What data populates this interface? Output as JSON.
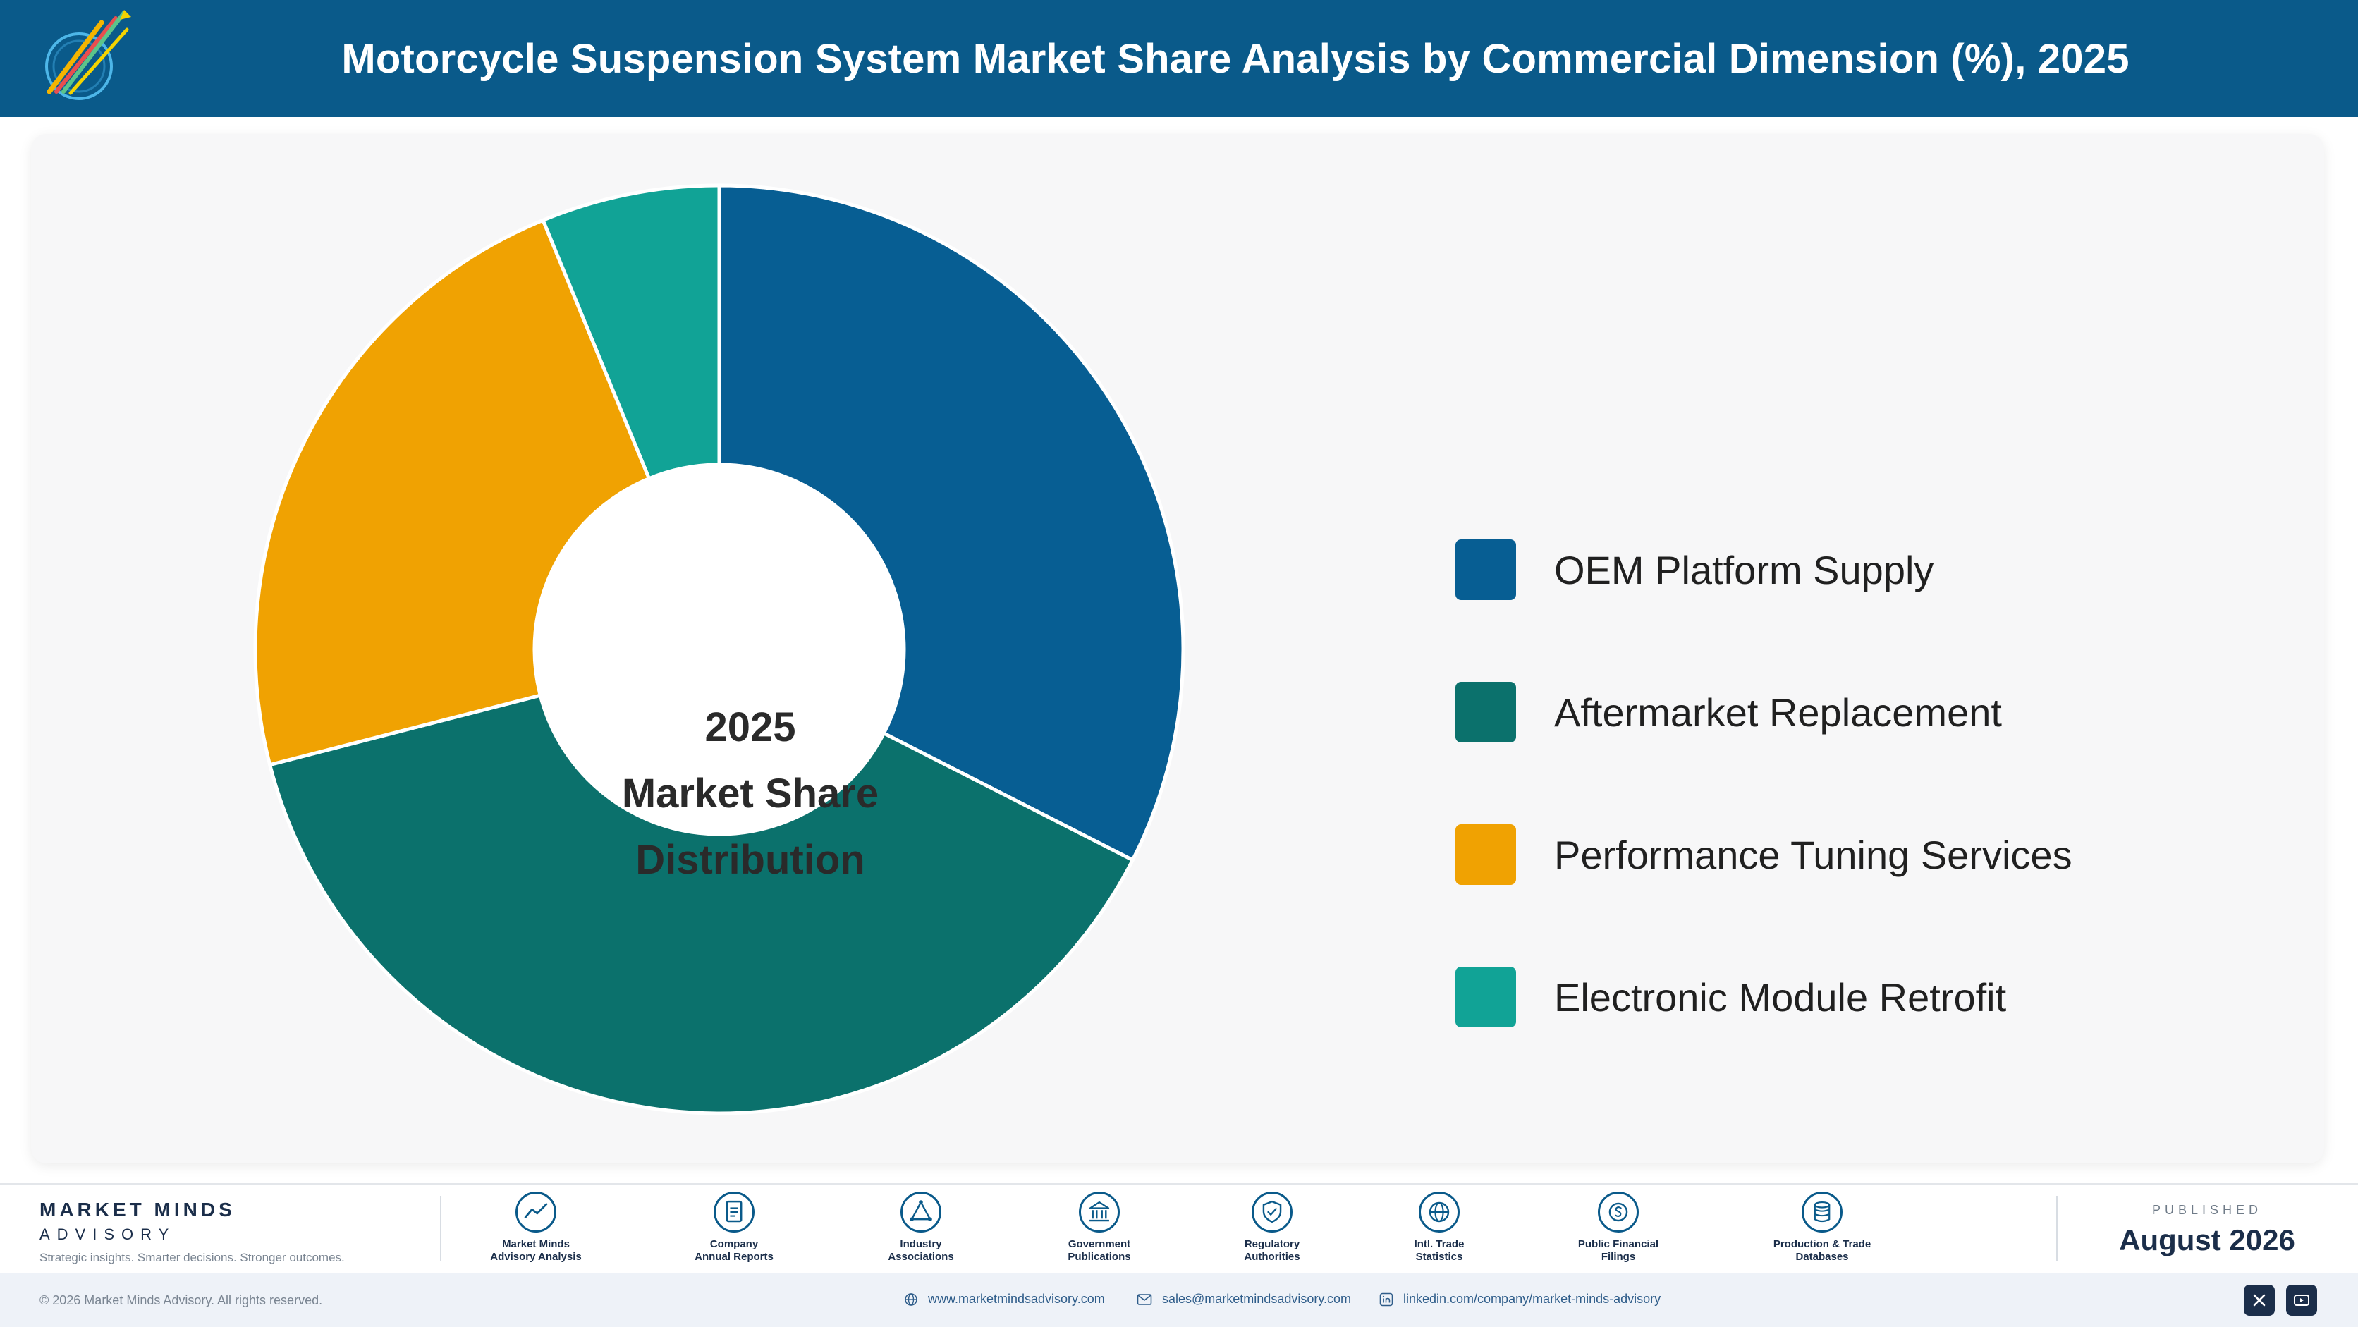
{
  "header": {
    "title": "Motorcycle Suspension System Market Share Analysis by Commercial Dimension (%), 2025",
    "background": "#0a5a8a"
  },
  "chart_data": {
    "type": "pie",
    "donut": true,
    "title": "Motorcycle Suspension System Market Share Analysis by Commercial Dimension (%), 2025",
    "center_label": [
      "2025",
      "Market Share",
      "Distribution"
    ],
    "legend_position": "right",
    "categories": [
      "OEM Platform Supply",
      "Aftermarket Replacement",
      "Performance Tuning Services",
      "Electronic Module Retrofit"
    ],
    "values": [
      32.5,
      38.5,
      22.8,
      6.2
    ],
    "unit": "%",
    "colors": [
      "#075e93",
      "#0b716c",
      "#f0a202",
      "#11a396"
    ]
  },
  "footer": {
    "brand_name": "MARKET MINDS",
    "brand_sub": "ADVISORY",
    "tagline": "Strategic insights. Smarter decisions. Stronger outcomes.",
    "sources": [
      {
        "line1": "Market Minds",
        "line2": "Advisory Analysis",
        "icon": "chart-line-icon"
      },
      {
        "line1": "Company",
        "line2": "Annual Reports",
        "icon": "document-icon"
      },
      {
        "line1": "Industry",
        "line2": "Associations",
        "icon": "network-icon"
      },
      {
        "line1": "Government",
        "line2": "Publications",
        "icon": "building-icon"
      },
      {
        "line1": "Regulatory",
        "line2": "Authorities",
        "icon": "shield-icon"
      },
      {
        "line1": "Intl. Trade",
        "line2": "Statistics",
        "icon": "globe-icon"
      },
      {
        "line1": "Public Financial",
        "line2": "Filings",
        "icon": "coin-icon"
      },
      {
        "line1": "Production & Trade",
        "line2": "Databases",
        "icon": "database-icon"
      }
    ],
    "published_label": "PUBLISHED",
    "published_date": "August 2026",
    "copyright": "© 2026 Market Minds Advisory. All rights reserved.",
    "website": "www.marketmindsadvisory.com",
    "email": "sales@marketmindsadvisory.com",
    "linkedin": "linkedin.com/company/market-minds-advisory"
  }
}
